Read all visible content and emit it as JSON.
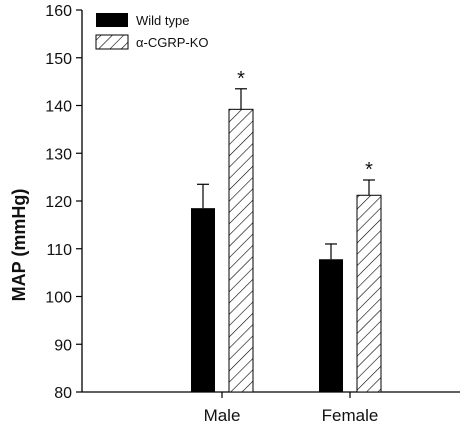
{
  "chart_data": {
    "type": "bar",
    "ylabel": "MAP (mmHg)",
    "ylim": [
      80,
      160
    ],
    "yticks": [
      80,
      90,
      100,
      110,
      120,
      130,
      140,
      150,
      160
    ],
    "categories": [
      "Male",
      "Female"
    ],
    "series": [
      {
        "name": "Wild type",
        "values": [
          118.5,
          107.8
        ],
        "errors": [
          5.0,
          3.2
        ],
        "fill": "solid",
        "color": "#000000"
      },
      {
        "name": "α-CGRP-KO",
        "values": [
          139.2,
          121.2
        ],
        "errors": [
          4.3,
          3.2
        ],
        "fill": "hatched",
        "color": "#000000"
      }
    ],
    "annotations": [
      "*",
      "*"
    ],
    "legend_position": "top-left",
    "grid": false
  }
}
